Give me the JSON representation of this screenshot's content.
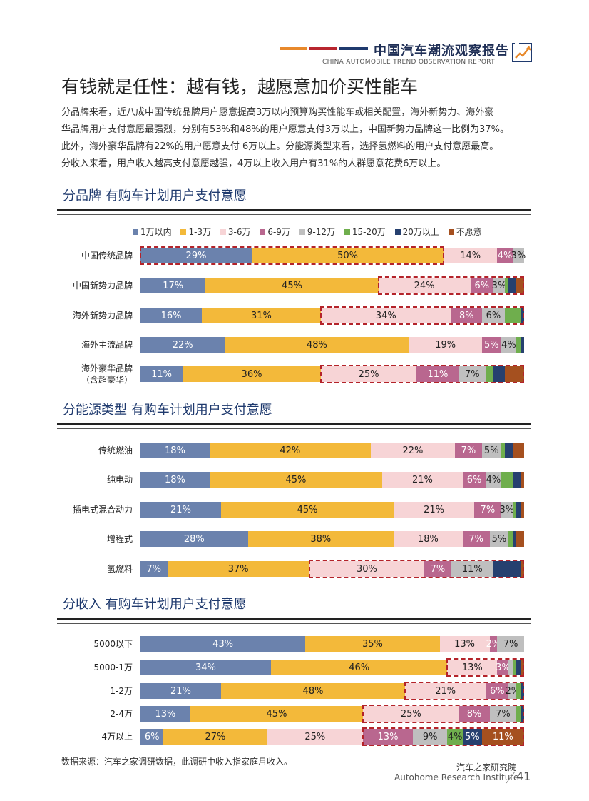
{
  "header": {
    "title": "中国汽车潮流观察报告",
    "subtitle": "CHINA AUTOMOBILE TREND OBSERVATION REPORT",
    "bar_colors": [
      "#e8892b",
      "#b8262f",
      "#1f3a6e"
    ]
  },
  "page_title": "有钱就是任性：越有钱，越愿意加价买性能车",
  "intro": [
    "分品牌来看，近八成中国传统品牌用户愿意提高3万以内预算购买性能车或相关配置，海外新势力、海外豪",
    "华品牌用户支付意愿最强烈，分别有53%和48%的用户愿意支付3万以上，中国新势力品牌这一比例为37%。",
    "此外，海外豪华品牌有22%的用户愿意支付 6万以上。分能源类型来看，选择氢燃料的用户支付意愿最高。",
    "分收入来看，用户收入越高支付意愿越强，4万以上收入用户有31%的人群愿意花费6万以上。"
  ],
  "legend": [
    "1万以内",
    "1-3万",
    "3-6万",
    "6-9万",
    "9-12万",
    "15-20万",
    "20万以上",
    "不愿意"
  ],
  "colors": [
    "#6b82ad",
    "#f3b93a",
    "#f7d4d6",
    "#b9678f",
    "#bfbfbf",
    "#6fae4d",
    "#26406f",
    "#a5501f"
  ],
  "highlight_color": "#b4232a",
  "sections": [
    {
      "title": "分品牌  有购车计划用户支付意愿",
      "rows": [
        {
          "label": "中国传统品牌",
          "values": [
            29,
            50,
            14,
            4,
            3,
            0,
            0,
            0
          ],
          "shown": [
            "29%",
            "50%",
            "14%",
            "4%",
            "3%",
            "",
            "",
            ""
          ]
        },
        {
          "label": "中国新势力品牌",
          "values": [
            17,
            45,
            24,
            6,
            3,
            1,
            2,
            2
          ],
          "shown": [
            "17%",
            "45%",
            "24%",
            "6%",
            "3%",
            "",
            "",
            ""
          ]
        },
        {
          "label": "海外新势力品牌",
          "values": [
            16,
            31,
            34,
            8,
            6,
            4,
            1,
            0
          ],
          "shown": [
            "16%",
            "31%",
            "34%",
            "8%",
            "6%",
            "",
            "",
            ""
          ]
        },
        {
          "label": "海外主流品牌",
          "values": [
            22,
            48,
            19,
            5,
            4,
            1,
            1,
            0
          ],
          "shown": [
            "22%",
            "48%",
            "19%",
            "5%",
            "4%",
            "",
            "",
            ""
          ]
        },
        {
          "label": "海外豪华品牌\n（含超豪华）",
          "values": [
            11,
            36,
            25,
            11,
            7,
            2,
            3,
            5
          ],
          "shown": [
            "11%",
            "36%",
            "25%",
            "11%",
            "7%",
            "",
            "",
            ""
          ]
        }
      ]
    },
    {
      "title": "分能源类型  有购车计划用户支付意愿",
      "rows": [
        {
          "label": "传统燃油",
          "values": [
            18,
            42,
            22,
            7,
            5,
            1,
            2,
            3
          ],
          "shown": [
            "18%",
            "42%",
            "22%",
            "7%",
            "5%",
            "",
            "",
            ""
          ]
        },
        {
          "label": "纯电动",
          "values": [
            18,
            45,
            21,
            6,
            4,
            3,
            2,
            1
          ],
          "shown": [
            "18%",
            "45%",
            "21%",
            "6%",
            "4%",
            "",
            "",
            ""
          ]
        },
        {
          "label": "插电式混合动力",
          "values": [
            21,
            45,
            21,
            7,
            3,
            1,
            1,
            1
          ],
          "shown": [
            "21%",
            "45%",
            "21%",
            "7%",
            "3%",
            "",
            "",
            ""
          ]
        },
        {
          "label": "增程式",
          "values": [
            28,
            38,
            18,
            7,
            5,
            1,
            1,
            2
          ],
          "shown": [
            "28%",
            "38%",
            "18%",
            "7%",
            "5%",
            "",
            "",
            ""
          ]
        },
        {
          "label": "氢燃料",
          "values": [
            7,
            37,
            30,
            7,
            11,
            0,
            7,
            1
          ],
          "shown": [
            "7%",
            "37%",
            "30%",
            "7%",
            "11%",
            "",
            "",
            ""
          ]
        }
      ]
    },
    {
      "title": "分收入  有购车计划用户支付意愿",
      "rows": [
        {
          "label": "5000以下",
          "values": [
            43,
            35,
            13,
            2,
            7,
            0,
            0,
            0
          ],
          "shown": [
            "43%",
            "35%",
            "13%",
            "2%",
            "7%",
            "",
            "",
            ""
          ]
        },
        {
          "label": "5000-1万",
          "values": [
            34,
            46,
            13,
            3,
            1,
            1,
            1,
            1
          ],
          "shown": [
            "34%",
            "46%",
            "13%",
            "3%",
            "",
            "",
            "",
            ""
          ]
        },
        {
          "label": "1-2万",
          "values": [
            21,
            48,
            21,
            6,
            2,
            1,
            1,
            0
          ],
          "shown": [
            "21%",
            "48%",
            "21%",
            "6%",
            "2%",
            "",
            "",
            ""
          ]
        },
        {
          "label": "2-4万",
          "values": [
            13,
            45,
            25,
            8,
            7,
            1,
            1,
            0
          ],
          "shown": [
            "13%",
            "45%",
            "25%",
            "8%",
            "7%",
            "",
            "",
            ""
          ]
        },
        {
          "label": "4万以上",
          "values": [
            6,
            27,
            25,
            13,
            9,
            4,
            5,
            11
          ],
          "shown": [
            "6%",
            "27%",
            "25%",
            "13%",
            "9%",
            "4%",
            "5%",
            "11%"
          ]
        }
      ]
    }
  ],
  "source": "数据来源：汽车之家调研数据，此调研中收入指家庭月收入。",
  "footer": {
    "org_cn": "汽车之家研究院",
    "org_en": "Autohome Research Institute",
    "page_number": "41"
  }
}
